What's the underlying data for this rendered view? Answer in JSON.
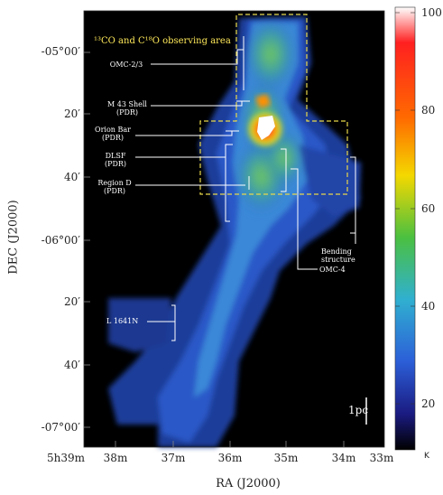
{
  "figure": {
    "observing_area_title": "¹³CO and C¹⁸O observing area",
    "scale_bar_label": "1pc",
    "x_axis_label": "RA (J2000)",
    "y_axis_label": "DEC (J2000)",
    "colorbar_unit": "K",
    "colorbar_ticks": [
      "100",
      "80",
      "60",
      "40",
      "20"
    ],
    "y_ticks": [
      "-05°00′",
      "20′",
      "40′",
      "-06°00′",
      "20′",
      "40′",
      "-07°00′"
    ],
    "x_ticks": [
      "5h39m",
      "38m",
      "37m",
      "36m",
      "35m",
      "34m",
      "33m"
    ],
    "regions": {
      "omc23": "OMC-2/3",
      "m43": "M 43 Shell\n(PDR)",
      "orion_bar": "Orion Bar\n(PDR)",
      "dlsf": "DLSF\n(PDR)",
      "region_d": "Region D\n(PDR)",
      "bending": "Bending structure",
      "omc4": "OMC-4",
      "l1641n": "L 1641N"
    }
  },
  "colors": {
    "background": "#000000",
    "dashed_box": "#e8d84a",
    "label_line": "#ffffff",
    "peak": "#ffffff"
  }
}
